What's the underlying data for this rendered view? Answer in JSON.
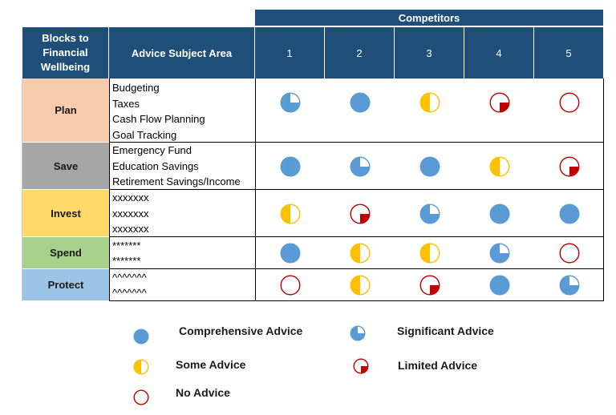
{
  "header": {
    "competitors_label": "Competitors",
    "block_header": "Blocks to Financial Wellbeing",
    "block_header_lines": [
      "Blocks to",
      "Financial",
      "Wellbeing"
    ],
    "subject_header": "Advice Subject Area",
    "competitors": [
      "1",
      "2",
      "3",
      "4",
      "5"
    ]
  },
  "colors": {
    "header_bg": "#1f4e79",
    "full_blue": "#5b9bd5",
    "yellow": "#ffc000",
    "red": "#c00000",
    "plan_bg": "#f8cbad",
    "save_bg": "#a6a6a6",
    "invest_bg": "#ffd966",
    "spend_bg": "#a9d18e",
    "protect_bg": "#9dc3e6"
  },
  "rows": [
    {
      "block": "Plan",
      "color": "#f8cbad",
      "subjects": [
        "Budgeting",
        "Taxes",
        "Cash Flow Planning",
        "Goal Tracking"
      ],
      "ratings": [
        "significant",
        "comprehensive",
        "some",
        "limited",
        "none"
      ]
    },
    {
      "block": "Save",
      "color": "#a6a6a6",
      "subjects": [
        "Emergency Fund",
        "Education Savings",
        "Retirement Savings/Income"
      ],
      "ratings": [
        "comprehensive",
        "significant",
        "comprehensive",
        "some",
        "limited"
      ]
    },
    {
      "block": "Invest",
      "color": "#ffd966",
      "subjects": [
        "xxxxxxx",
        "xxxxxxx",
        "xxxxxxx"
      ],
      "ratings": [
        "some",
        "limited",
        "significant",
        "comprehensive",
        "comprehensive"
      ]
    },
    {
      "block": "Spend",
      "color": "#a9d18e",
      "subjects": [
        "*******",
        "*******"
      ],
      "ratings": [
        "comprehensive",
        "some",
        "some",
        "significant",
        "none"
      ]
    },
    {
      "block": "Protect",
      "color": "#9dc3e6",
      "subjects": [
        "^^^^^^^",
        "^^^^^^^"
      ],
      "ratings": [
        "none",
        "some",
        "limited",
        "comprehensive",
        "significant"
      ]
    }
  ],
  "legend": [
    {
      "key": "comprehensive",
      "label": "Comprehensive Advice",
      "icon": "full-circle-icon"
    },
    {
      "key": "significant",
      "label": "Significant Advice",
      "icon": "three-quarter-circle-icon"
    },
    {
      "key": "some",
      "label": "Some Advice",
      "icon": "half-circle-icon"
    },
    {
      "key": "limited",
      "label": "Limited Advice",
      "icon": "quarter-circle-icon"
    },
    {
      "key": "none",
      "label": "No Advice",
      "icon": "empty-circle-icon"
    }
  ]
}
